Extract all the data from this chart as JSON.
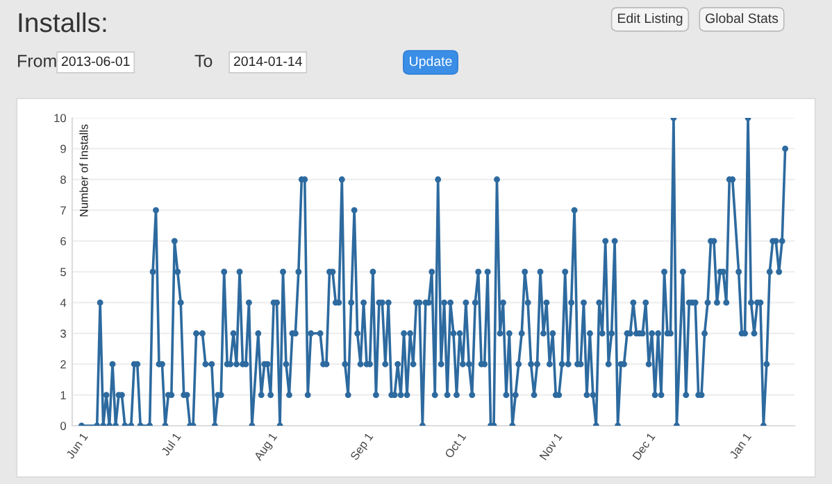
{
  "chart_data": {
    "type": "line",
    "title": "Installs:",
    "ylabel": "Number of Installs",
    "annotations": [
      "From",
      "2013-06-01",
      "To",
      "2014-01-14",
      "Update",
      "Edit Listing",
      "Global Stats"
    ],
    "x": [
      "2013-06-01",
      "2013-06-06",
      "2013-06-07",
      "2013-06-08",
      "2013-06-09",
      "2013-06-10",
      "2013-06-11",
      "2013-06-12",
      "2013-06-13",
      "2013-06-14",
      "2013-06-15",
      "2013-06-17",
      "2013-06-18",
      "2013-06-19",
      "2013-06-20",
      "2013-06-23",
      "2013-06-24",
      "2013-06-25",
      "2013-06-26",
      "2013-06-27",
      "2013-06-28",
      "2013-06-29",
      "2013-06-30",
      "2013-07-01",
      "2013-07-02",
      "2013-07-03",
      "2013-07-04",
      "2013-07-05",
      "2013-07-06",
      "2013-07-07",
      "2013-07-08",
      "2013-07-10",
      "2013-07-11",
      "2013-07-13",
      "2013-07-14",
      "2013-07-15",
      "2013-07-16",
      "2013-07-17",
      "2013-07-18",
      "2013-07-19",
      "2013-07-20",
      "2013-07-21",
      "2013-07-22",
      "2013-07-23",
      "2013-07-24",
      "2013-07-25",
      "2013-07-26",
      "2013-07-28",
      "2013-07-29",
      "2013-07-30",
      "2013-07-31",
      "2013-08-01",
      "2013-08-02",
      "2013-08-03",
      "2013-08-04",
      "2013-08-05",
      "2013-08-06",
      "2013-08-07",
      "2013-08-08",
      "2013-08-09",
      "2013-08-10",
      "2013-08-11",
      "2013-08-12",
      "2013-08-13",
      "2013-08-14",
      "2013-08-17",
      "2013-08-18",
      "2013-08-19",
      "2013-08-20",
      "2013-08-21",
      "2013-08-22",
      "2013-08-23",
      "2013-08-24",
      "2013-08-25",
      "2013-08-26",
      "2013-08-27",
      "2013-08-28",
      "2013-08-29",
      "2013-08-30",
      "2013-08-31",
      "2013-09-01",
      "2013-09-02",
      "2013-09-03",
      "2013-09-04",
      "2013-09-05",
      "2013-09-06",
      "2013-09-07",
      "2013-09-08",
      "2013-09-09",
      "2013-09-10",
      "2013-09-11",
      "2013-09-12",
      "2013-09-13",
      "2013-09-14",
      "2013-09-15",
      "2013-09-16",
      "2013-09-17",
      "2013-09-18",
      "2013-09-19",
      "2013-09-20",
      "2013-09-21",
      "2013-09-22",
      "2013-09-23",
      "2013-09-24",
      "2013-09-25",
      "2013-09-26",
      "2013-09-27",
      "2013-09-28",
      "2013-09-29",
      "2013-09-30",
      "2013-10-01",
      "2013-10-02",
      "2013-10-03",
      "2013-10-04",
      "2013-10-05",
      "2013-10-06",
      "2013-10-07",
      "2013-10-08",
      "2013-10-09",
      "2013-10-10",
      "2013-10-11",
      "2013-10-12",
      "2013-10-13",
      "2013-10-14",
      "2013-10-15",
      "2013-10-16",
      "2013-10-17",
      "2013-10-18",
      "2013-10-19",
      "2013-10-20",
      "2013-10-21",
      "2013-10-22",
      "2013-10-23",
      "2013-10-24",
      "2013-10-25",
      "2013-10-26",
      "2013-10-27",
      "2013-10-28",
      "2013-10-29",
      "2013-10-30",
      "2013-10-31",
      "2013-11-01",
      "2013-11-02",
      "2013-11-03",
      "2013-11-04",
      "2013-11-05",
      "2013-11-06",
      "2013-11-07",
      "2013-11-08",
      "2013-11-09",
      "2013-11-10",
      "2013-11-11",
      "2013-11-12",
      "2013-11-13",
      "2013-11-14",
      "2013-11-15",
      "2013-11-16",
      "2013-11-17",
      "2013-11-18",
      "2013-11-19",
      "2013-11-20",
      "2013-11-21",
      "2013-11-22",
      "2013-11-23",
      "2013-11-24",
      "2013-11-25",
      "2013-11-26",
      "2013-11-27",
      "2013-11-28",
      "2013-11-29",
      "2013-11-30",
      "2013-12-01",
      "2013-12-02",
      "2013-12-03",
      "2013-12-04",
      "2013-12-05",
      "2013-12-06",
      "2013-12-07",
      "2013-12-08",
      "2013-12-09",
      "2013-12-10",
      "2013-12-12",
      "2013-12-13",
      "2013-12-14",
      "2013-12-15",
      "2013-12-16",
      "2013-12-17",
      "2013-12-18",
      "2013-12-19",
      "2013-12-20",
      "2013-12-21",
      "2013-12-22",
      "2013-12-23",
      "2013-12-24",
      "2013-12-25",
      "2013-12-26",
      "2013-12-27",
      "2013-12-28",
      "2013-12-30",
      "2013-12-31",
      "2014-01-01",
      "2014-01-02",
      "2014-01-03",
      "2014-01-04",
      "2014-01-05",
      "2014-01-06",
      "2014-01-07",
      "2014-01-08",
      "2014-01-09",
      "2014-01-10",
      "2014-01-11",
      "2014-01-12",
      "2014-01-13",
      "2014-01-14"
    ],
    "series": [
      {
        "color": "#2d6a9f",
        "values": [
          0,
          0,
          4,
          0,
          1,
          0,
          2,
          0,
          1,
          1,
          0,
          0,
          2,
          2,
          0,
          0,
          5,
          7,
          2,
          2,
          0,
          1,
          1,
          6,
          5,
          4,
          1,
          1,
          0,
          0,
          3,
          3,
          2,
          2,
          0,
          1,
          1,
          5,
          2,
          2,
          3,
          2,
          5,
          2,
          2,
          4,
          0,
          3,
          1,
          2,
          2,
          1,
          4,
          4,
          0,
          5,
          2,
          1,
          3,
          3,
          5,
          8,
          8,
          1,
          3,
          3,
          2,
          2,
          5,
          5,
          4,
          4,
          8,
          2,
          1,
          4,
          7,
          3,
          2,
          4,
          2,
          2,
          5,
          1,
          4,
          4,
          2,
          4,
          1,
          1,
          2,
          1,
          3,
          1,
          3,
          2,
          4,
          4,
          0,
          4,
          4,
          5,
          1,
          8,
          2,
          4,
          1,
          4,
          3,
          1,
          3,
          2,
          4,
          2,
          1,
          4,
          5,
          2,
          2,
          5,
          0,
          0,
          8,
          3,
          4,
          1,
          3,
          0,
          1,
          2,
          3,
          5,
          4,
          2,
          1,
          2,
          5,
          3,
          4,
          2,
          3,
          1,
          1,
          2,
          5,
          2,
          4,
          7,
          2,
          2,
          4,
          1,
          3,
          1,
          0,
          4,
          3,
          6,
          2,
          3,
          6,
          0,
          2,
          2,
          3,
          3,
          4,
          3,
          3,
          3,
          4,
          2,
          3,
          1,
          3,
          1,
          5,
          3,
          3,
          10,
          0,
          5,
          1,
          4,
          4,
          4,
          1,
          1,
          3,
          4,
          6,
          6,
          4,
          5,
          5,
          4,
          8,
          8,
          5,
          3,
          3,
          10,
          4,
          3,
          4,
          4,
          0,
          2,
          5,
          6,
          6,
          5,
          6,
          9
        ]
      }
    ],
    "xlim": [
      "2013-05-29",
      "2014-01-17"
    ],
    "xticks": [
      {
        "value": "2013-06-01",
        "label": "Jun 1"
      },
      {
        "value": "2013-07-01",
        "label": "Jul 1"
      },
      {
        "value": "2013-08-01",
        "label": "Aug 1"
      },
      {
        "value": "2013-09-01",
        "label": "Sep 1"
      },
      {
        "value": "2013-10-01",
        "label": "Oct 1"
      },
      {
        "value": "2013-11-01",
        "label": "Nov 1"
      },
      {
        "value": "2013-12-01",
        "label": "Dec 1"
      },
      {
        "value": "2014-01-01",
        "label": "Jan 1"
      }
    ],
    "ylim": [
      0,
      10
    ],
    "yticks": [
      0,
      1,
      2,
      3,
      4,
      5,
      6,
      7,
      8,
      9,
      10
    ],
    "grid": "y",
    "marker": "circle",
    "line_style": "solid"
  }
}
